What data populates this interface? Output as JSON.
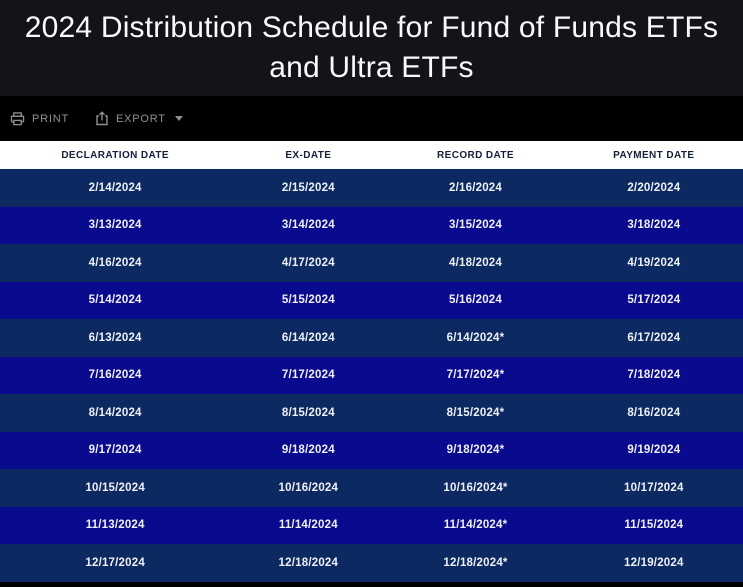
{
  "title": "2024 Distribution Schedule for Fund of Funds ETFs and Ultra ETFs",
  "toolbar": {
    "print_label": "PRINT",
    "export_label": "EXPORT"
  },
  "table": {
    "columns": [
      "DECLARATION DATE",
      "EX-DATE",
      "RECORD DATE",
      "PAYMENT DATE"
    ],
    "rows": [
      [
        "2/14/2024",
        "2/15/2024",
        "2/16/2024",
        "2/20/2024"
      ],
      [
        "3/13/2024",
        "3/14/2024",
        "3/15/2024",
        "3/18/2024"
      ],
      [
        "4/16/2024",
        "4/17/2024",
        "4/18/2024",
        "4/19/2024"
      ],
      [
        "5/14/2024",
        "5/15/2024",
        "5/16/2024",
        "5/17/2024"
      ],
      [
        "6/13/2024",
        "6/14/2024",
        "6/14/2024*",
        "6/17/2024"
      ],
      [
        "7/16/2024",
        "7/17/2024",
        "7/17/2024*",
        "7/18/2024"
      ],
      [
        "8/14/2024",
        "8/15/2024",
        "8/15/2024*",
        "8/16/2024"
      ],
      [
        "9/17/2024",
        "9/18/2024",
        "9/18/2024*",
        "9/19/2024"
      ],
      [
        "10/15/2024",
        "10/16/2024",
        "10/16/2024*",
        "10/17/2024"
      ],
      [
        "11/13/2024",
        "11/14/2024",
        "11/14/2024*",
        "11/15/2024"
      ],
      [
        "12/17/2024",
        "12/18/2024",
        "12/18/2024*",
        "12/19/2024"
      ]
    ]
  },
  "colors": {
    "title_background": "#121418",
    "toolbar_background": "#000000",
    "toolbar_text": "#8d9095",
    "header_row_background": "#ffffff",
    "header_text": "#14203a",
    "row_dark_navy": "#0c2961",
    "row_royal_blue": "#0a0a8f",
    "row_text": "#eef0f5"
  }
}
